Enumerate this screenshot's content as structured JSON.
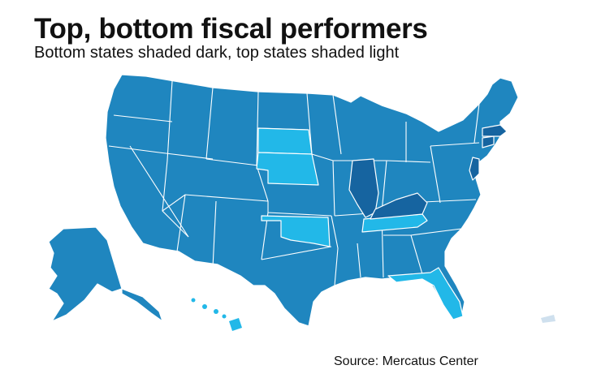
{
  "title": "Top, bottom fiscal performers",
  "subtitle": "Bottom states shaded dark, top states shaded light",
  "source": "Source: Mercatus Center",
  "colors": {
    "default": "#1f86bf",
    "bottom": "#1664a0",
    "top": "#22b8e8",
    "territory": "#cfe0ee"
  },
  "map": {
    "bottom_states": [
      "Illinois",
      "Kentucky",
      "New Jersey",
      "Connecticut",
      "Massachusetts"
    ],
    "top_states": [
      "South Dakota",
      "Nebraska",
      "Oklahoma",
      "Tennessee",
      "Florida"
    ]
  }
}
